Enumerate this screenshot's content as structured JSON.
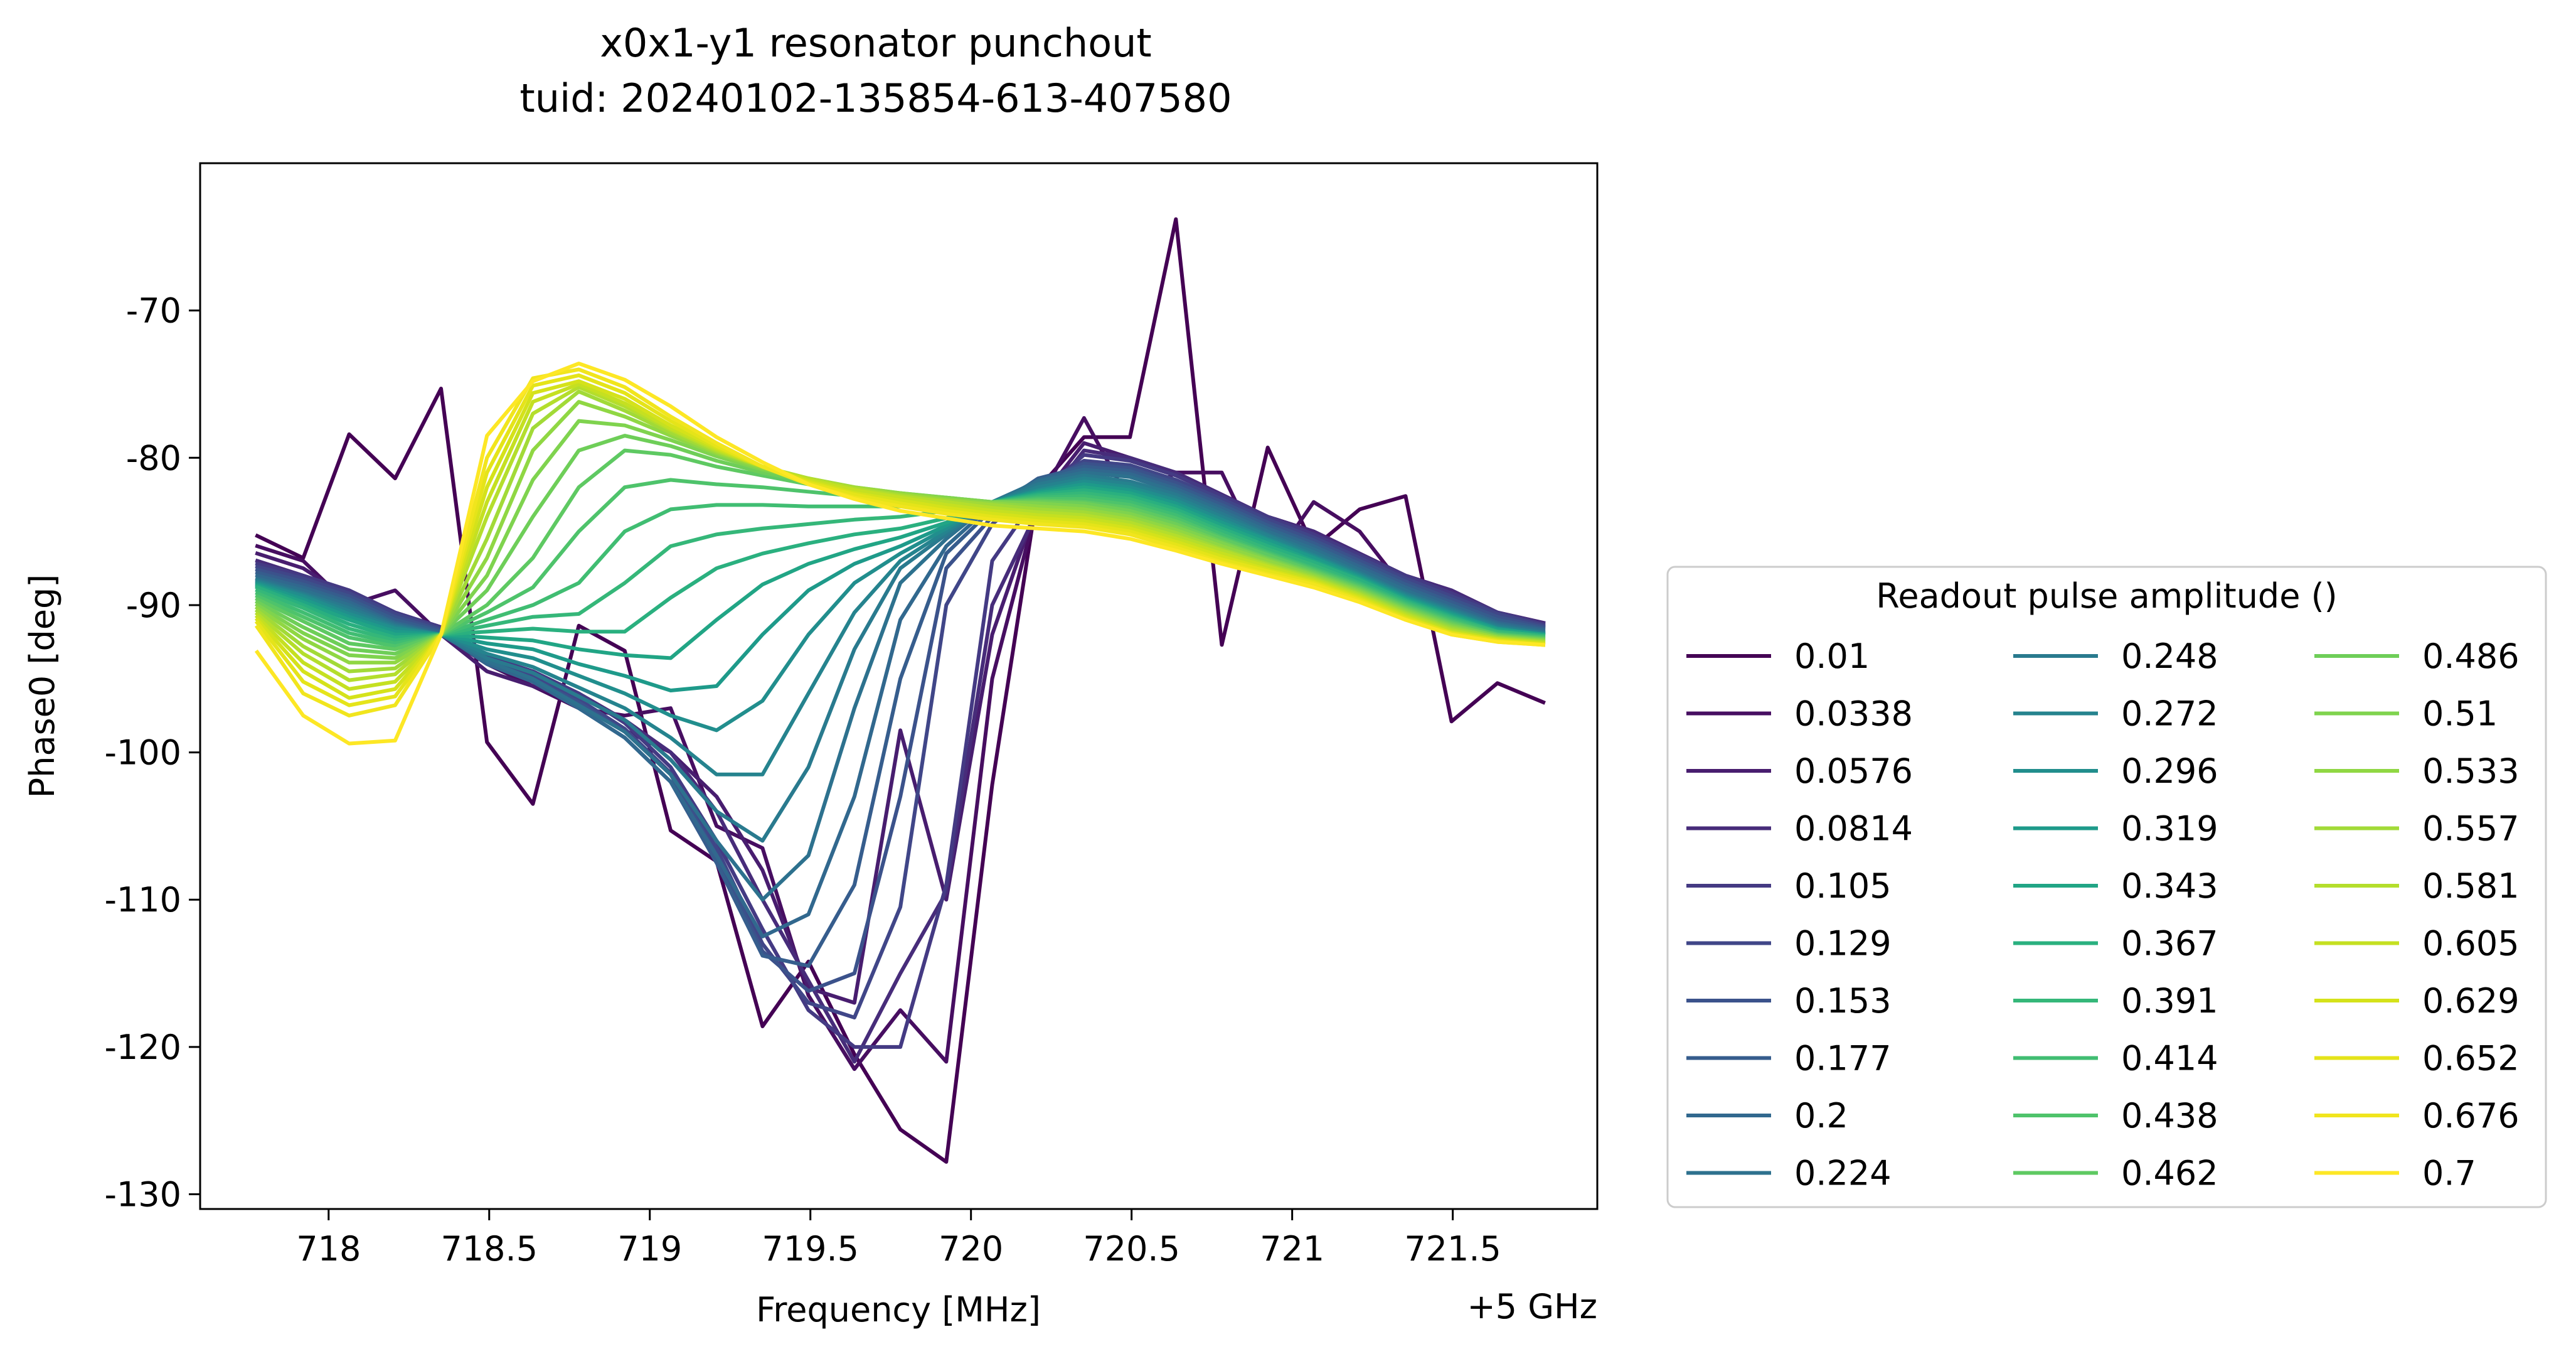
{
  "chart_data": {
    "type": "line",
    "title": "x0x1-y1 resonator punchout",
    "subtitle": "tuid: 20240102-135854-613-407580",
    "xlabel": "Frequency [MHz]",
    "ylabel": "Phase0 [deg]",
    "x_offset_label": "+5 GHz",
    "legend_title": "Readout pulse amplitude ()",
    "legend_position": "right",
    "grid": false,
    "xlim": [
      717.6,
      721.95
    ],
    "ylim": [
      -131,
      -60
    ],
    "x_ticks": [
      718,
      718.5,
      719,
      719.5,
      720,
      720.5,
      721,
      721.5
    ],
    "x_tick_labels": [
      "718",
      "718.5",
      "719",
      "719.5",
      "720",
      "720.5",
      "721",
      "721.5"
    ],
    "y_ticks": [
      -130,
      -120,
      -110,
      -100,
      -90,
      -80,
      -70
    ],
    "y_tick_labels": [
      "-130",
      "-120",
      "-110",
      "-100",
      "-90",
      "-80",
      "-70"
    ],
    "x": [
      717.778,
      717.921,
      718.064,
      718.207,
      718.35,
      718.493,
      718.636,
      718.779,
      718.922,
      719.065,
      719.208,
      719.351,
      719.494,
      719.637,
      719.78,
      719.923,
      720.066,
      720.209,
      720.352,
      720.495,
      720.638,
      720.781,
      720.924,
      721.067,
      721.21,
      721.353,
      721.496,
      721.639,
      721.782
    ],
    "series": [
      {
        "name": "0.01",
        "color": "#440154",
        "values": [
          -85.3,
          -86.8,
          -78.4,
          -81.4,
          -75.3,
          -99.3,
          -103.5,
          -91.4,
          -93.1,
          -105.3,
          -107.4,
          -118.6,
          -114.2,
          -120.5,
          -125.6,
          -127.8,
          -102.2,
          -82.1,
          -78.6,
          -78.6,
          -63.8,
          -92.7,
          -79.3,
          -86.1,
          -83.5,
          -82.6,
          -97.9,
          -95.3,
          -96.6
        ]
      },
      {
        "name": "0.0338",
        "color": "#470e61",
        "values": [
          -86.0,
          -87.0,
          -90.0,
          -89.0,
          -92.0,
          -94.0,
          -95.5,
          -97.0,
          -97.5,
          -97.0,
          -105.0,
          -106.5,
          -116.5,
          -121.5,
          -117.5,
          -121.0,
          -95.0,
          -83.0,
          -77.3,
          -83.0,
          -81.0,
          -81.0,
          -87.5,
          -83.0,
          -85.0,
          -89.0,
          -90.0,
          -91.0,
          -91.5
        ]
      },
      {
        "name": "0.0576",
        "color": "#481d6f",
        "values": [
          -86.5,
          -87.5,
          -89.5,
          -91.0,
          -92.0,
          -94.5,
          -95.5,
          -96.5,
          -98.5,
          -100.0,
          -103.0,
          -108.0,
          -116.0,
          -117.0,
          -98.5,
          -110.0,
          -92.0,
          -83.0,
          -79.0,
          -80.0,
          -81.0,
          -82.5,
          -84.0,
          -85.0,
          -86.5,
          -88.0,
          -89.0,
          -90.5,
          -91.2
        ]
      },
      {
        "name": "0.0814",
        "color": "#472c7a",
        "values": [
          -87.0,
          -88.0,
          -89.0,
          -90.5,
          -91.5,
          -93.5,
          -94.5,
          -96.0,
          -97.8,
          -100.0,
          -104.0,
          -110.0,
          -115.5,
          -121.0,
          -115.0,
          -109.5,
          -90.0,
          -83.5,
          -79.5,
          -80.0,
          -81.0,
          -82.5,
          -84.0,
          -85.0,
          -86.5,
          -88.0,
          -89.0,
          -90.5,
          -91.2
        ]
      },
      {
        "name": "0.105",
        "color": "#443a83",
        "values": [
          -87.2,
          -88.0,
          -89.0,
          -90.5,
          -91.5,
          -93.5,
          -94.5,
          -96.0,
          -98.0,
          -101.0,
          -106.0,
          -112.0,
          -117.5,
          -120.0,
          -120.0,
          -109.0,
          -87.0,
          -82.5,
          -79.8,
          -80.2,
          -81.2,
          -82.6,
          -84.0,
          -85.2,
          -86.6,
          -88.0,
          -89.2,
          -90.5,
          -91.3
        ]
      },
      {
        "name": "0.129",
        "color": "#404688",
        "values": [
          -87.4,
          -88.2,
          -89.2,
          -90.6,
          -91.6,
          -93.6,
          -94.8,
          -96.4,
          -98.4,
          -101.4,
          -106.5,
          -113.0,
          -117.0,
          -118.0,
          -110.5,
          -90.0,
          -84.5,
          -82.0,
          -80.2,
          -80.5,
          -81.5,
          -82.8,
          -84.2,
          -85.4,
          -86.8,
          -88.2,
          -89.4,
          -90.6,
          -91.4
        ]
      },
      {
        "name": "0.153",
        "color": "#3b528b",
        "values": [
          -87.6,
          -88.4,
          -89.4,
          -90.8,
          -91.7,
          -93.8,
          -95.0,
          -96.6,
          -98.6,
          -101.5,
          -107.0,
          -113.5,
          -116.2,
          -115.0,
          -103.0,
          -87.5,
          -84.0,
          -81.6,
          -80.4,
          -80.7,
          -81.7,
          -83.0,
          -84.4,
          -85.6,
          -87.0,
          -88.4,
          -89.6,
          -90.8,
          -91.5
        ]
      },
      {
        "name": "0.177",
        "color": "#365d8d",
        "values": [
          -87.8,
          -88.6,
          -89.6,
          -91.0,
          -91.8,
          -94.0,
          -95.2,
          -97.0,
          -99.0,
          -102.0,
          -107.5,
          -113.8,
          -114.5,
          -109.0,
          -95.0,
          -86.5,
          -83.5,
          -81.4,
          -80.6,
          -80.9,
          -81.9,
          -83.2,
          -84.6,
          -85.8,
          -87.2,
          -88.6,
          -89.8,
          -91.0,
          -91.6
        ]
      },
      {
        "name": "0.2",
        "color": "#31688e",
        "values": [
          -88.0,
          -88.8,
          -89.8,
          -91.2,
          -91.9,
          -94.0,
          -95.2,
          -97.0,
          -99.0,
          -102.0,
          -107.0,
          -112.5,
          -111.0,
          -103.0,
          -91.0,
          -86.0,
          -83.2,
          -81.5,
          -80.8,
          -81.1,
          -82.1,
          -83.4,
          -84.8,
          -86.0,
          -87.4,
          -88.8,
          -90.0,
          -91.2,
          -91.7
        ]
      },
      {
        "name": "0.224",
        "color": "#2d718e",
        "values": [
          -88.2,
          -89.0,
          -90.0,
          -91.3,
          -92.0,
          -93.8,
          -95.0,
          -96.8,
          -98.6,
          -101.5,
          -106.0,
          -110.0,
          -107.0,
          -97.0,
          -88.5,
          -85.5,
          -83.0,
          -81.6,
          -81.0,
          -81.3,
          -82.3,
          -83.6,
          -85.0,
          -86.2,
          -87.6,
          -89.0,
          -90.2,
          -91.3,
          -91.8
        ]
      },
      {
        "name": "0.248",
        "color": "#297a8e",
        "values": [
          -88.3,
          -89.2,
          -90.2,
          -91.4,
          -92.0,
          -93.6,
          -94.6,
          -96.2,
          -97.8,
          -100.5,
          -104.0,
          -106.0,
          -101.0,
          -93.0,
          -87.5,
          -85.2,
          -83.0,
          -81.8,
          -81.2,
          -81.6,
          -82.5,
          -83.8,
          -85.2,
          -86.4,
          -87.8,
          -89.2,
          -90.3,
          -91.4,
          -91.9
        ]
      },
      {
        "name": "0.272",
        "color": "#25838e",
        "values": [
          -88.4,
          -89.3,
          -90.4,
          -91.5,
          -92.0,
          -93.3,
          -94.2,
          -95.6,
          -97.0,
          -99.0,
          -101.5,
          -101.5,
          -96.0,
          -90.5,
          -87.0,
          -85.0,
          -83.0,
          -82.0,
          -81.4,
          -81.8,
          -82.7,
          -84.0,
          -85.3,
          -86.6,
          -87.9,
          -89.3,
          -90.4,
          -91.5,
          -91.9
        ]
      },
      {
        "name": "0.296",
        "color": "#218e8d",
        "values": [
          -88.5,
          -89.4,
          -90.6,
          -91.6,
          -92.0,
          -93.0,
          -93.6,
          -94.8,
          -96.0,
          -97.5,
          -98.5,
          -96.5,
          -92.0,
          -88.5,
          -86.5,
          -84.8,
          -83.0,
          -82.2,
          -81.6,
          -82.0,
          -82.9,
          -84.2,
          -85.5,
          -86.7,
          -88.0,
          -89.4,
          -90.5,
          -91.6,
          -92.0
        ]
      },
      {
        "name": "0.319",
        "color": "#1e9a8a",
        "values": [
          -88.6,
          -89.6,
          -90.8,
          -91.8,
          -92.0,
          -92.6,
          -93.0,
          -94.0,
          -94.8,
          -95.8,
          -95.5,
          -92.0,
          -89.0,
          -87.2,
          -86.0,
          -84.6,
          -83.0,
          -82.3,
          -81.8,
          -82.2,
          -83.1,
          -84.4,
          -85.6,
          -86.8,
          -88.1,
          -89.5,
          -90.6,
          -91.6,
          -92.0
        ]
      },
      {
        "name": "0.343",
        "color": "#21a585",
        "values": [
          -88.7,
          -89.8,
          -91.0,
          -92.0,
          -92.0,
          -92.2,
          -92.4,
          -93.0,
          -93.4,
          -93.6,
          -91.0,
          -88.6,
          -87.2,
          -86.2,
          -85.4,
          -84.4,
          -83.0,
          -82.4,
          -82.0,
          -82.4,
          -83.3,
          -84.6,
          -85.8,
          -87.0,
          -88.2,
          -89.6,
          -90.7,
          -91.7,
          -92.0
        ]
      },
      {
        "name": "0.367",
        "color": "#2ab07f",
        "values": [
          -88.8,
          -90.0,
          -91.3,
          -92.2,
          -92.0,
          -91.8,
          -91.6,
          -91.8,
          -91.8,
          -89.5,
          -87.5,
          -86.5,
          -85.8,
          -85.2,
          -84.8,
          -84.1,
          -83.0,
          -82.5,
          -82.2,
          -82.6,
          -83.5,
          -84.8,
          -86.0,
          -87.1,
          -88.3,
          -89.7,
          -90.8,
          -91.8,
          -92.1
        ]
      },
      {
        "name": "0.391",
        "color": "#35b779",
        "values": [
          -89.0,
          -90.2,
          -91.6,
          -92.4,
          -92.0,
          -91.4,
          -90.8,
          -90.6,
          -88.5,
          -86.0,
          -85.2,
          -84.8,
          -84.5,
          -84.2,
          -84.0,
          -83.6,
          -83.0,
          -82.6,
          -82.4,
          -82.8,
          -83.7,
          -85.0,
          -86.2,
          -87.3,
          -88.5,
          -89.8,
          -90.9,
          -91.8,
          -92.1
        ]
      },
      {
        "name": "0.414",
        "color": "#40bd72",
        "values": [
          -89.2,
          -90.5,
          -91.9,
          -92.6,
          -92.0,
          -91.0,
          -90.0,
          -88.5,
          -85.0,
          -83.5,
          -83.2,
          -83.2,
          -83.3,
          -83.3,
          -83.3,
          -83.2,
          -83.0,
          -82.7,
          -82.6,
          -83.0,
          -83.9,
          -85.2,
          -86.4,
          -87.5,
          -88.6,
          -89.9,
          -91.0,
          -91.9,
          -92.2
        ]
      },
      {
        "name": "0.438",
        "color": "#4ec36b",
        "values": [
          -89.4,
          -90.8,
          -92.2,
          -92.8,
          -92.0,
          -90.5,
          -88.8,
          -85.0,
          -82.0,
          -81.5,
          -81.8,
          -82.0,
          -82.3,
          -82.6,
          -82.8,
          -82.9,
          -83.0,
          -82.8,
          -82.8,
          -83.2,
          -84.1,
          -85.4,
          -86.5,
          -87.6,
          -88.7,
          -90.0,
          -91.1,
          -92.0,
          -92.2
        ]
      },
      {
        "name": "0.462",
        "color": "#5ec962",
        "values": [
          -89.6,
          -91.1,
          -92.6,
          -93.0,
          -92.0,
          -90.0,
          -86.8,
          -82.0,
          -79.5,
          -79.8,
          -80.6,
          -81.2,
          -81.8,
          -82.2,
          -82.5,
          -82.7,
          -83.0,
          -82.9,
          -83.0,
          -83.4,
          -84.3,
          -85.5,
          -86.6,
          -87.7,
          -88.8,
          -90.1,
          -91.2,
          -92.0,
          -92.3
        ]
      },
      {
        "name": "0.486",
        "color": "#6ece58",
        "values": [
          -89.8,
          -91.5,
          -93.0,
          -93.3,
          -92.0,
          -89.0,
          -84.0,
          -79.5,
          -78.5,
          -79.2,
          -80.2,
          -81.0,
          -81.6,
          -82.1,
          -82.4,
          -82.7,
          -83.0,
          -83.0,
          -83.1,
          -83.6,
          -84.5,
          -85.7,
          -86.8,
          -87.8,
          -88.9,
          -90.2,
          -91.3,
          -92.1,
          -92.3
        ]
      },
      {
        "name": "0.51",
        "color": "#7fd34e",
        "values": [
          -90.0,
          -91.9,
          -93.4,
          -93.6,
          -92.0,
          -88.0,
          -81.5,
          -77.5,
          -77.8,
          -78.8,
          -79.9,
          -80.8,
          -81.5,
          -82.0,
          -82.4,
          -82.7,
          -83.0,
          -83.1,
          -83.3,
          -83.8,
          -84.7,
          -85.8,
          -86.9,
          -87.9,
          -89.0,
          -90.3,
          -91.4,
          -92.1,
          -92.4
        ]
      },
      {
        "name": "0.533",
        "color": "#90d743",
        "values": [
          -90.2,
          -92.3,
          -93.9,
          -93.9,
          -92.0,
          -86.8,
          -79.5,
          -76.2,
          -77.2,
          -78.5,
          -79.7,
          -80.7,
          -81.4,
          -82.0,
          -82.4,
          -82.8,
          -83.1,
          -83.3,
          -83.5,
          -84.0,
          -84.9,
          -86.0,
          -87.0,
          -88.0,
          -89.1,
          -90.4,
          -91.5,
          -92.2,
          -92.4
        ]
      },
      {
        "name": "0.557",
        "color": "#a2da37",
        "values": [
          -90.4,
          -92.8,
          -94.5,
          -94.3,
          -92.0,
          -85.5,
          -78.0,
          -75.5,
          -76.8,
          -78.3,
          -79.6,
          -80.6,
          -81.4,
          -82.0,
          -82.5,
          -82.9,
          -83.2,
          -83.5,
          -83.7,
          -84.2,
          -85.1,
          -86.2,
          -87.2,
          -88.1,
          -89.2,
          -90.5,
          -91.6,
          -92.2,
          -92.5
        ]
      },
      {
        "name": "0.581",
        "color": "#b4de2c",
        "values": [
          -90.6,
          -93.3,
          -95.1,
          -94.7,
          -92.0,
          -84.0,
          -77.0,
          -75.2,
          -76.5,
          -78.1,
          -79.5,
          -80.6,
          -81.4,
          -82.1,
          -82.6,
          -83.0,
          -83.4,
          -83.7,
          -83.9,
          -84.4,
          -85.3,
          -86.3,
          -87.3,
          -88.2,
          -89.3,
          -90.6,
          -91.7,
          -92.3,
          -92.5
        ]
      },
      {
        "name": "0.605",
        "color": "#c5e021",
        "values": [
          -90.8,
          -93.9,
          -95.7,
          -95.2,
          -92.0,
          -83.0,
          -76.2,
          -75.0,
          -76.3,
          -78.0,
          -79.4,
          -80.6,
          -81.5,
          -82.2,
          -82.7,
          -83.2,
          -83.6,
          -83.9,
          -84.1,
          -84.6,
          -85.5,
          -86.5,
          -87.4,
          -88.3,
          -89.4,
          -90.7,
          -91.8,
          -92.3,
          -92.6
        ]
      },
      {
        "name": "0.629",
        "color": "#d5e21a",
        "values": [
          -91.0,
          -94.5,
          -96.3,
          -95.7,
          -92.0,
          -82.0,
          -75.6,
          -74.8,
          -76.0,
          -77.8,
          -79.3,
          -80.6,
          -81.6,
          -82.4,
          -82.9,
          -83.4,
          -83.8,
          -84.1,
          -84.3,
          -84.8,
          -85.7,
          -86.7,
          -87.6,
          -88.4,
          -89.5,
          -90.8,
          -91.9,
          -92.4,
          -92.6
        ]
      },
      {
        "name": "0.652",
        "color": "#e5e419",
        "values": [
          -91.2,
          -95.2,
          -96.8,
          -96.2,
          -92.0,
          -81.0,
          -75.1,
          -74.4,
          -75.6,
          -77.5,
          -79.2,
          -80.6,
          -81.7,
          -82.5,
          -83.1,
          -83.6,
          -84.0,
          -84.3,
          -84.5,
          -85.0,
          -85.9,
          -86.9,
          -87.7,
          -88.5,
          -89.6,
          -90.9,
          -91.9,
          -92.4,
          -92.7
        ]
      },
      {
        "name": "0.676",
        "color": "#f1e51d",
        "values": [
          -91.5,
          -96.0,
          -97.5,
          -96.8,
          -92.0,
          -80.0,
          -74.6,
          -74.0,
          -75.2,
          -77.2,
          -79.0,
          -80.6,
          -81.8,
          -82.7,
          -83.3,
          -83.8,
          -84.2,
          -84.5,
          -84.7,
          -85.2,
          -86.1,
          -87.1,
          -87.9,
          -88.6,
          -89.7,
          -91.0,
          -92.0,
          -92.5,
          -92.7
        ]
      },
      {
        "name": "0.7",
        "color": "#fde725",
        "values": [
          -93.2,
          -97.5,
          -99.4,
          -99.2,
          -92.0,
          -78.5,
          -74.8,
          -73.6,
          -74.7,
          -76.5,
          -78.6,
          -80.3,
          -81.8,
          -82.8,
          -83.6,
          -84.1,
          -84.6,
          -84.8,
          -85.0,
          -85.5,
          -86.3,
          -87.2,
          -88.0,
          -88.8,
          -89.8,
          -91.0,
          -92.0,
          -92.5,
          -92.7
        ]
      }
    ]
  }
}
